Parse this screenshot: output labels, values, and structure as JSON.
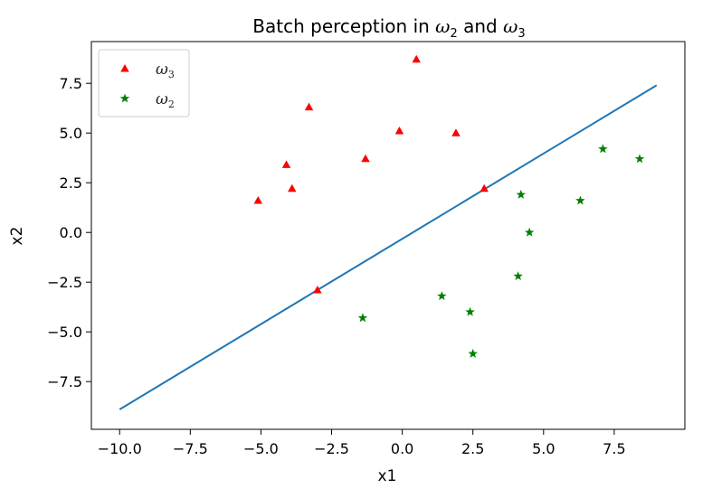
{
  "chart_data": {
    "type": "scatter",
    "title_parts": [
      "Batch perception in ",
      "ω",
      "2",
      " and ",
      "ω",
      "3"
    ],
    "xlabel": "x1",
    "ylabel": "x2",
    "xlim": [
      -11.0,
      10.0
    ],
    "ylim": [
      -9.9,
      9.6
    ],
    "xticks": [
      -10.0,
      -7.5,
      -5.0,
      -2.5,
      0.0,
      2.5,
      5.0,
      7.5
    ],
    "xtick_labels": [
      "−10.0",
      "−7.5",
      "−5.0",
      "−2.5",
      "0.0",
      "2.5",
      "5.0",
      "7.5"
    ],
    "yticks": [
      -7.5,
      -5.0,
      -2.5,
      0.0,
      2.5,
      5.0,
      7.5
    ],
    "ytick_labels": [
      "−7.5",
      "−5.0",
      "−2.5",
      "0.0",
      "2.5",
      "5.0",
      "7.5"
    ],
    "grid": false,
    "legend_position": "top-left",
    "series": [
      {
        "label_base": "ω",
        "label_sub": "3",
        "marker": "triangle",
        "color": "#ff0000",
        "points": [
          {
            "x": -5.1,
            "y": 1.6
          },
          {
            "x": -4.1,
            "y": 3.4
          },
          {
            "x": -3.9,
            "y": 2.2
          },
          {
            "x": -3.3,
            "y": 6.3
          },
          {
            "x": -3.0,
            "y": -2.9
          },
          {
            "x": -1.3,
            "y": 3.7
          },
          {
            "x": -0.1,
            "y": 5.1
          },
          {
            "x": 0.5,
            "y": 8.7
          },
          {
            "x": 1.9,
            "y": 5.0
          },
          {
            "x": 2.9,
            "y": 2.2
          }
        ]
      },
      {
        "label_base": "ω",
        "label_sub": "2",
        "marker": "star",
        "color": "#008000",
        "points": [
          {
            "x": -1.4,
            "y": -4.3
          },
          {
            "x": 1.4,
            "y": -3.2
          },
          {
            "x": 2.4,
            "y": -4.0
          },
          {
            "x": 2.5,
            "y": -6.1
          },
          {
            "x": 4.1,
            "y": -2.2
          },
          {
            "x": 4.2,
            "y": 1.9
          },
          {
            "x": 4.5,
            "y": 0.0
          },
          {
            "x": 6.3,
            "y": 1.6
          },
          {
            "x": 7.1,
            "y": 4.2
          },
          {
            "x": 8.4,
            "y": 3.7
          }
        ]
      }
    ],
    "line": {
      "color": "#1f77b4",
      "x": [
        -10.0,
        9.0
      ],
      "y": [
        -8.9,
        7.4
      ]
    }
  }
}
